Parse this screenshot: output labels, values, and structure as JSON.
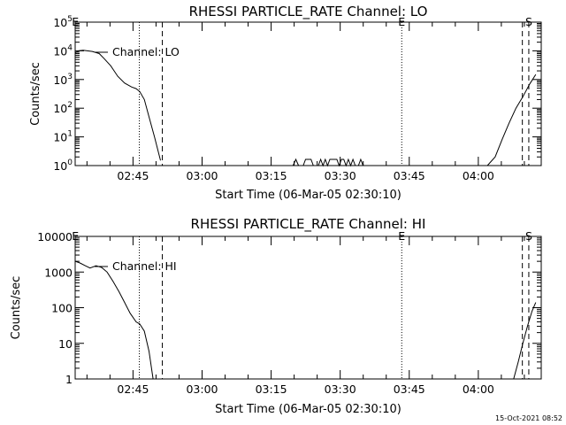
{
  "footer": {
    "timestamp": "15-Oct-2021 08:52"
  },
  "chart_data": [
    {
      "type": "line",
      "title": "RHESSI PARTICLE_RATE Channel: LO",
      "xlabel": "Start Time (06-Mar-05 02:30:10)",
      "ylabel": "Counts/sec",
      "yscale": "log",
      "xlim": [
        2.27,
        103.5
      ],
      "ylim": [
        1,
        100000
      ],
      "x_unit": "minutes after 02:30:10",
      "xtick_labels": [
        "02:45",
        "03:00",
        "03:15",
        "03:30",
        "03:45",
        "04:00"
      ],
      "ytick_labels": [
        {
          "base": "10",
          "exp": "0"
        },
        {
          "base": "10",
          "exp": "1"
        },
        {
          "base": "10",
          "exp": "2"
        },
        {
          "base": "10",
          "exp": "3"
        },
        {
          "base": "10",
          "exp": "4"
        },
        {
          "base": "10",
          "exp": "5"
        }
      ],
      "legend": {
        "label": "Channel: LO",
        "placement": "top-left"
      },
      "markers": [
        {
          "label": "E",
          "x": 2.3,
          "style": "none"
        },
        {
          "label": "",
          "x": 16.2,
          "style": "dotted"
        },
        {
          "label": "",
          "x": 21.2,
          "style": "dashed"
        },
        {
          "label": "E",
          "x": 73.2,
          "style": "dotted"
        },
        {
          "label": "",
          "x": 99.4,
          "style": "dashed"
        },
        {
          "label": "S",
          "x": 100.8,
          "style": "dashed"
        }
      ],
      "series": [
        {
          "name": "",
          "points": [
            [
              2.3,
              8500
            ],
            [
              3.0,
              10000
            ],
            [
              4.0,
              10500
            ],
            [
              6.0,
              9500
            ],
            [
              7.5,
              8000
            ],
            [
              8.5,
              5500
            ],
            [
              10,
              3000
            ],
            [
              11.5,
              1300
            ],
            [
              13,
              750
            ],
            [
              14.5,
              550
            ],
            [
              15.5,
              480
            ],
            [
              16.3,
              380
            ],
            [
              17.3,
              200
            ],
            [
              18.3,
              50
            ],
            [
              19.5,
              10
            ],
            [
              20.8,
              1.5
            ]
          ]
        },
        {
          "name": "",
          "points": [
            [
              49.6,
              1
            ],
            [
              50.2,
              1.65
            ],
            [
              50.8,
              1
            ]
          ]
        },
        {
          "name": "",
          "points": [
            [
              51.8,
              1
            ],
            [
              52.3,
              1.65
            ],
            [
              53.5,
              1.65
            ],
            [
              54,
              1
            ]
          ]
        },
        {
          "name": "",
          "points": [
            [
              55.1,
              1
            ],
            [
              55.6,
              1.65
            ],
            [
              56.1,
              1
            ],
            [
              56.6,
              1.65
            ],
            [
              57.1,
              1
            ],
            [
              57.6,
              1.65
            ],
            [
              59.1,
              1.65
            ],
            [
              59.6,
              1
            ],
            [
              60.1,
              1.65
            ],
            [
              60.6,
              1.65
            ],
            [
              61.1,
              1
            ],
            [
              61.6,
              1.65
            ],
            [
              62.1,
              1
            ],
            [
              62.6,
              1.65
            ],
            [
              63.1,
              1
            ]
          ]
        },
        {
          "name": "",
          "points": [
            [
              63.8,
              1
            ],
            [
              64.3,
              1.65
            ],
            [
              64.8,
              1
            ]
          ]
        },
        {
          "name": "",
          "points": [
            [
              91.8,
              1
            ],
            [
              93.5,
              2
            ],
            [
              95,
              8
            ],
            [
              96.5,
              30
            ],
            [
              98,
              100
            ],
            [
              99.5,
              250
            ],
            [
              101,
              700
            ],
            [
              102.3,
              1500
            ]
          ]
        }
      ]
    },
    {
      "type": "line",
      "title": "RHESSI PARTICLE_RATE Channel: HI",
      "xlabel": "Start Time (06-Mar-05 02:30:10)",
      "ylabel": "Counts/sec",
      "yscale": "log",
      "xlim": [
        2.27,
        103.5
      ],
      "ylim": [
        1,
        10000
      ],
      "x_unit": "minutes after 02:30:10",
      "xtick_labels": [
        "02:45",
        "03:00",
        "03:15",
        "03:30",
        "03:45",
        "04:00"
      ],
      "ytick_labels": [
        "1",
        "10",
        "100",
        "1000",
        "10000"
      ],
      "legend": {
        "label": "Channel: HI",
        "placement": "top-left"
      },
      "markers": [
        {
          "label": "E",
          "x": 2.3,
          "style": "none"
        },
        {
          "label": "",
          "x": 16.2,
          "style": "dotted"
        },
        {
          "label": "",
          "x": 21.2,
          "style": "dashed"
        },
        {
          "label": "E",
          "x": 73.2,
          "style": "dotted"
        },
        {
          "label": "",
          "x": 99.4,
          "style": "dashed"
        },
        {
          "label": "S",
          "x": 100.8,
          "style": "dashed"
        }
      ],
      "series": [
        {
          "name": "",
          "points": [
            [
              2.3,
              2000
            ],
            [
              3.3,
              1800
            ],
            [
              4.5,
              1500
            ],
            [
              5.5,
              1300
            ],
            [
              6.8,
              1500
            ],
            [
              8,
              1350
            ],
            [
              9.2,
              1000
            ],
            [
              10.5,
              550
            ],
            [
              11.8,
              280
            ],
            [
              13,
              140
            ],
            [
              14.2,
              70
            ],
            [
              15.5,
              40
            ],
            [
              16.3,
              35
            ],
            [
              17.3,
              22
            ],
            [
              18.3,
              6
            ],
            [
              19.2,
              1
            ]
          ]
        },
        {
          "name": "",
          "points": [
            [
              97.5,
              1
            ],
            [
              98.5,
              3
            ],
            [
              99.5,
              10
            ],
            [
              100.5,
              30
            ],
            [
              101.5,
              80
            ],
            [
              102.3,
              140
            ]
          ]
        }
      ]
    }
  ]
}
